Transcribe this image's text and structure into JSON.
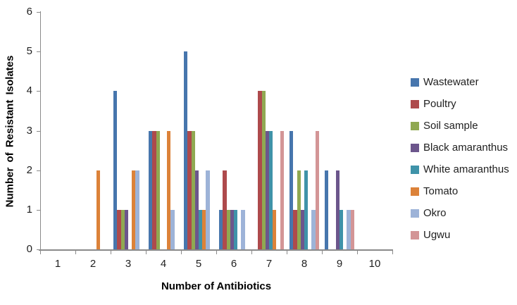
{
  "chart_data": {
    "type": "bar",
    "title": "",
    "xlabel": "Number of Antibiotics",
    "ylabel": "Number of Resistant Isolates",
    "categories": [
      "1",
      "2",
      "3",
      "4",
      "5",
      "6",
      "7",
      "8",
      "9",
      "10"
    ],
    "y_ticks": [
      0,
      1,
      2,
      3,
      4,
      5,
      6
    ],
    "ylim": [
      0,
      6
    ],
    "grid": false,
    "legend_position": "right",
    "axis_color": "#8a8a8a",
    "series": [
      {
        "name": "Wastewater",
        "color": "#4776ad",
        "values": [
          0,
          0,
          4,
          3,
          5,
          1,
          0,
          3,
          2,
          0
        ]
      },
      {
        "name": "Poultry",
        "color": "#ae4a4c",
        "values": [
          0,
          0,
          1,
          3,
          3,
          2,
          4,
          1,
          0,
          0
        ]
      },
      {
        "name": "Soil sample",
        "color": "#90a952",
        "values": [
          0,
          0,
          1,
          3,
          3,
          1,
          4,
          2,
          0,
          0
        ]
      },
      {
        "name": "Black amaranthus",
        "color": "#6c568c",
        "values": [
          0,
          0,
          1,
          0,
          2,
          1,
          3,
          1,
          2,
          0
        ]
      },
      {
        "name": "White amaranthus",
        "color": "#3f93a9",
        "values": [
          0,
          0,
          0,
          0,
          1,
          1,
          3,
          2,
          1,
          0
        ]
      },
      {
        "name": "Tomato",
        "color": "#dc8239",
        "values": [
          0,
          2,
          2,
          3,
          1,
          0,
          1,
          0,
          0,
          0
        ]
      },
      {
        "name": "Okro",
        "color": "#9db3d8",
        "values": [
          0,
          0,
          2,
          1,
          2,
          1,
          0,
          1,
          1,
          0
        ]
      },
      {
        "name": "Ugwu",
        "color": "#d39596",
        "values": [
          0,
          0,
          0,
          0,
          0,
          0,
          3,
          3,
          1,
          0
        ]
      }
    ]
  }
}
